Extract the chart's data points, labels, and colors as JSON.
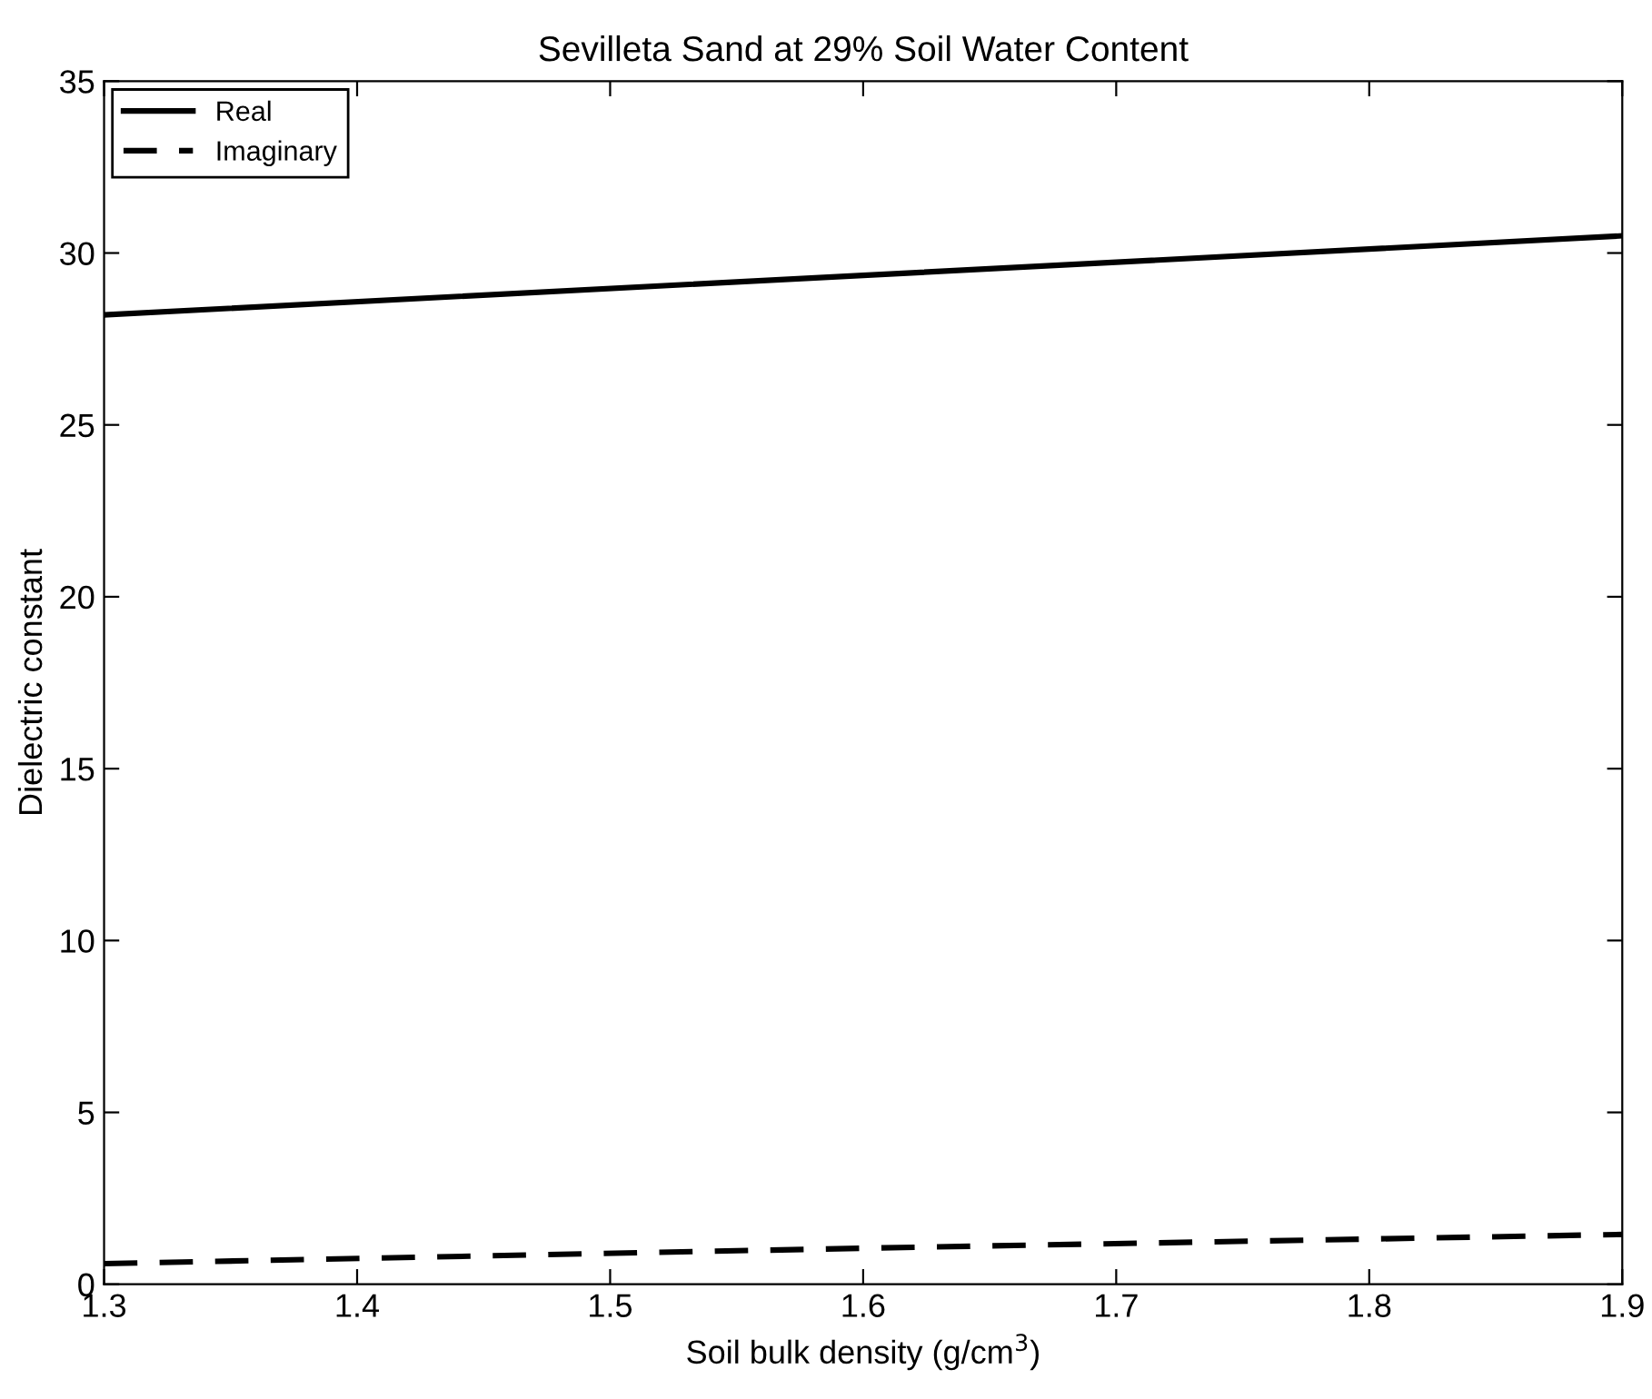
{
  "chart_data": {
    "type": "line",
    "title": "Sevilleta Sand at 29% Soil Water Content",
    "xlabel": "Soil bulk density (g/cm$^{3}$)",
    "ylabel": "Dielectric constant",
    "x": [
      1.3,
      1.6,
      1.9
    ],
    "series": [
      {
        "name": "Real",
        "color": "#000000",
        "values": [
          28.2,
          29.35,
          30.5
        ],
        "line_style": "solid"
      },
      {
        "name": "Imaginary",
        "color": "#000000",
        "values": [
          0.6,
          1.05,
          1.45
        ],
        "line_style": "dashed"
      }
    ],
    "xlim": [
      1.3,
      1.9
    ],
    "xticks": [
      1.3,
      1.4,
      1.5,
      1.6,
      1.7,
      1.8,
      1.9
    ],
    "ylim": [
      0,
      35
    ],
    "yticks": [
      0,
      5,
      10,
      15,
      20,
      25,
      30,
      35
    ],
    "grid": false,
    "legend": "top left",
    "marker": "none"
  }
}
